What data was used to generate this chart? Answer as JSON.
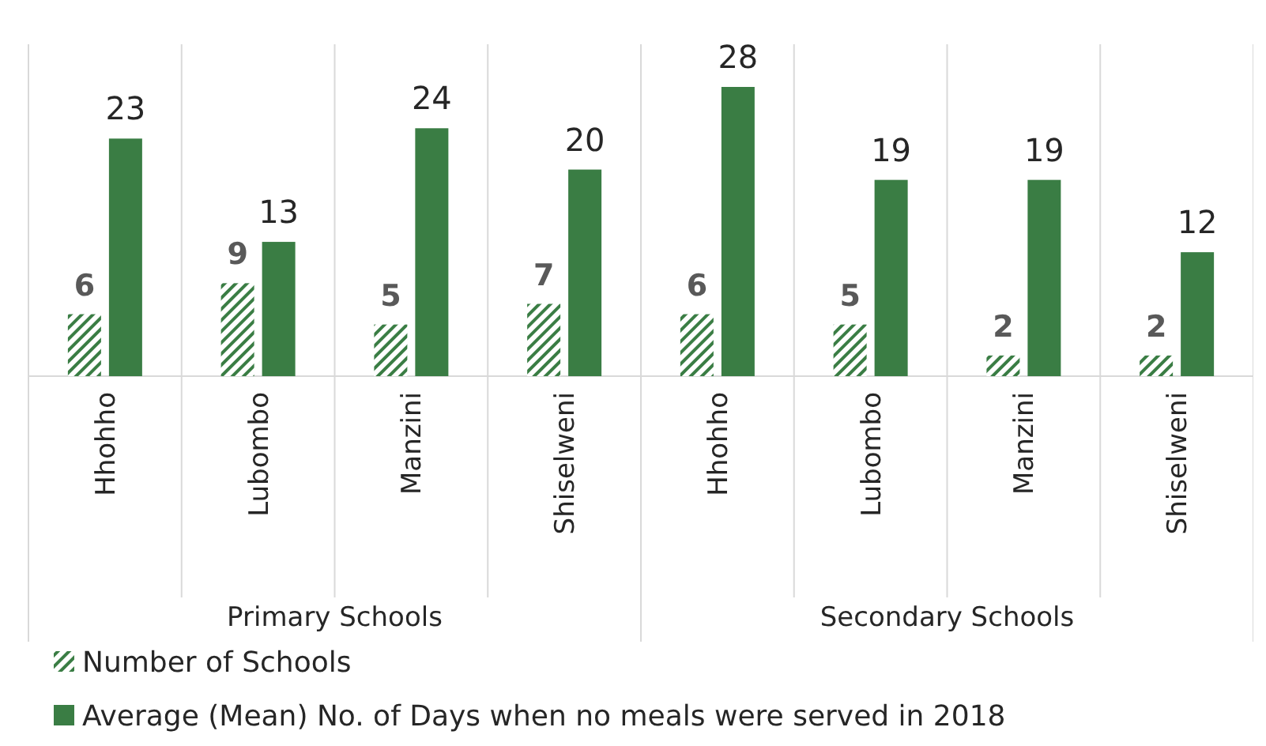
{
  "chart_data": {
    "type": "bar",
    "categories": [
      "Hhohho",
      "Lubombo",
      "Manzini",
      "Shiselweni",
      "Hhohho",
      "Lubombo",
      "Manzini",
      "Shiselweni"
    ],
    "series": [
      {
        "name": "Number of Schools",
        "color": "#3a7d44",
        "values": [
          6,
          9,
          5,
          7,
          6,
          5,
          2,
          2
        ]
      },
      {
        "name": "Average (Mean) No. of Days when no meals were served in 2018",
        "color": "#3a7d44",
        "values": [
          23,
          13,
          24,
          20,
          28,
          19,
          19,
          12
        ]
      }
    ],
    "data_labels": true,
    "legend": "bottom",
    "annotations": [
      "Primary Schools",
      "Secondary Schools"
    ]
  }
}
